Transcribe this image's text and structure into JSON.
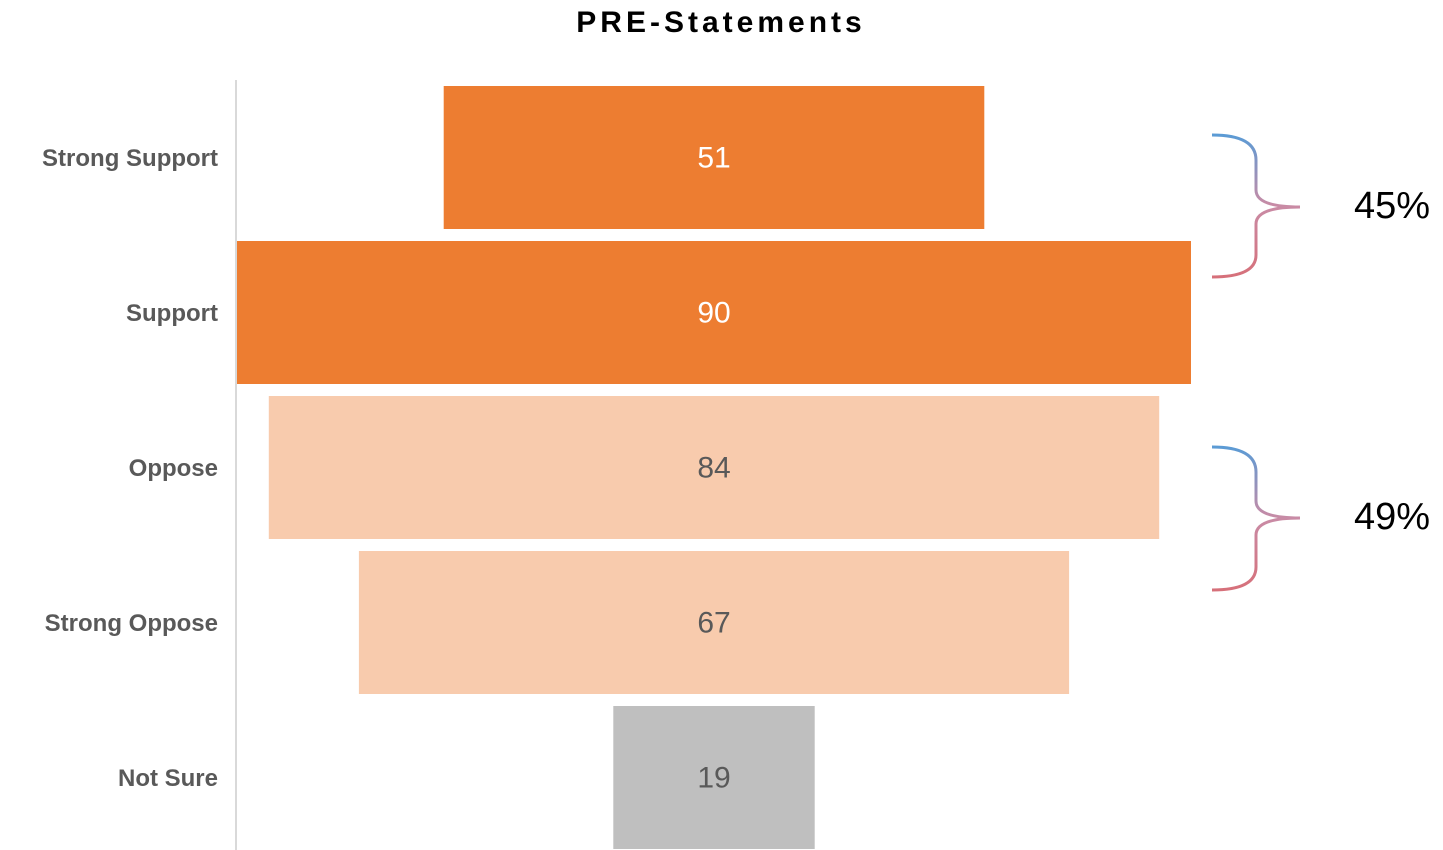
{
  "chart_data": {
    "type": "funnel",
    "title": "PRE-Statements",
    "categories": [
      "Strong Support",
      "Support",
      "Oppose",
      "Strong Oppose",
      "Not Sure"
    ],
    "values": [
      51,
      90,
      84,
      67,
      19
    ],
    "colors": [
      "#ED7D31",
      "#ED7D31",
      "#F8CBAD",
      "#F8CBAD",
      "#BFBFBF"
    ],
    "value_label_colors": [
      "#FFFFFF",
      "#FFFFFF",
      "#595959",
      "#595959",
      "#595959"
    ],
    "annotations": [
      "45%",
      "49%"
    ]
  }
}
